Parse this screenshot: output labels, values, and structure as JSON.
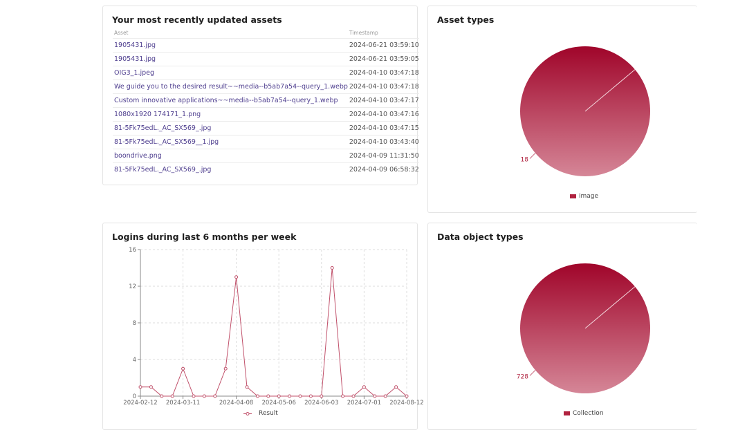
{
  "recent_assets": {
    "title": "Your most recently updated assets",
    "columns": [
      "Asset",
      "Timestamp"
    ],
    "rows": [
      {
        "asset": "1905431.jpg",
        "timestamp": "2024-06-21 03:59:10"
      },
      {
        "asset": "1905431.jpg",
        "timestamp": "2024-06-21 03:59:05"
      },
      {
        "asset": "OIG3_1.jpeg",
        "timestamp": "2024-04-10 03:47:18"
      },
      {
        "asset": "We guide you to the desired result~~media--b5ab7a54--query_1.webp",
        "timestamp": "2024-04-10 03:47:18"
      },
      {
        "asset": "Custom innovative applications~~media--b5ab7a54--query_1.webp",
        "timestamp": "2024-04-10 03:47:17"
      },
      {
        "asset": "1080x1920 174171_1.png",
        "timestamp": "2024-04-10 03:47:16"
      },
      {
        "asset": "81-5Fk75edL._AC_SX569_.jpg",
        "timestamp": "2024-04-10 03:47:15"
      },
      {
        "asset": "81-5Fk75edL._AC_SX569__1.jpg",
        "timestamp": "2024-04-10 03:43:40"
      },
      {
        "asset": "boondrive.png",
        "timestamp": "2024-04-09 11:31:50"
      },
      {
        "asset": "81-5Fk75edL._AC_SX569_.jpg",
        "timestamp": "2024-04-09 06:58:32"
      }
    ]
  },
  "asset_types": {
    "title": "Asset types"
  },
  "logins": {
    "title": "Logins during last 6 months per week"
  },
  "data_object_types": {
    "title": "Data object types"
  },
  "colors": {
    "pie_dark": "#a0052a",
    "pie_light": "#d58697",
    "line": "#c0506a",
    "link": "#4f3f8f"
  },
  "chart_data": [
    {
      "type": "pie",
      "slices": [
        {
          "label": "image",
          "value": 18
        }
      ],
      "labels_shown": [
        "18"
      ],
      "legend": [
        "image"
      ],
      "legend_position": "bottom"
    },
    {
      "type": "line",
      "series": [
        {
          "name": "Result",
          "values": [
            1,
            1,
            0,
            0,
            3,
            0,
            0,
            0,
            3,
            13,
            1,
            0,
            0,
            0,
            0,
            0,
            0,
            0,
            14,
            0,
            0,
            1,
            0,
            0,
            1,
            0
          ]
        }
      ],
      "x_tick_labels": [
        "2024-02-12",
        "2024-03-11",
        "2024-04-08",
        "2024-05-06",
        "2024-06-03",
        "2024-07-01",
        "2024-08-12"
      ],
      "x_tick_index": [
        0,
        4,
        9,
        13,
        17,
        21,
        25
      ],
      "y_ticks": [
        "0",
        "4",
        "8",
        "12",
        "16"
      ],
      "ylim": [
        0,
        16
      ],
      "grid": true,
      "legend_position": "bottom"
    },
    {
      "type": "pie",
      "slices": [
        {
          "label": "Collection",
          "value": 728
        }
      ],
      "labels_shown": [
        "728"
      ],
      "legend": [
        "Collection"
      ],
      "legend_position": "bottom"
    }
  ]
}
